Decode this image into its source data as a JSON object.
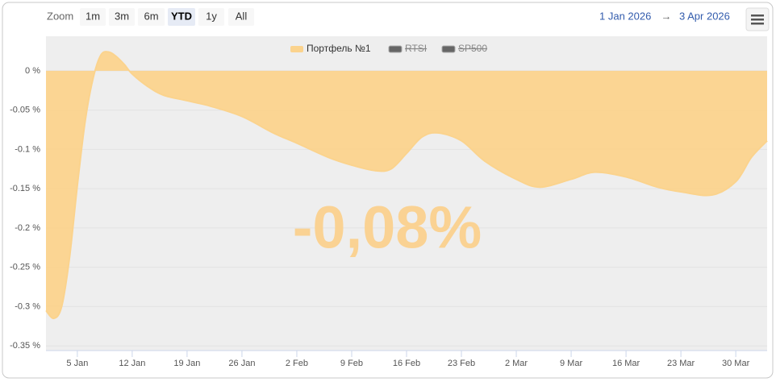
{
  "chart_data": {
    "type": "area",
    "range_selector": {
      "label": "Zoom",
      "buttons": [
        "1m",
        "3m",
        "6m",
        "YTD",
        "1y",
        "All"
      ],
      "selected": 3
    },
    "date_range": {
      "from": "1 Jan 2026",
      "arrow": "→",
      "to": "3 Apr 2026"
    },
    "annotation": "-0,08%",
    "x": [
      "2026-01-01",
      "2026-01-02",
      "2026-01-03",
      "2026-01-04",
      "2026-01-05",
      "2026-01-06",
      "2026-01-07",
      "2026-01-08",
      "2026-01-09",
      "2026-01-10",
      "2026-01-11",
      "2026-01-12",
      "2026-01-14",
      "2026-01-16",
      "2026-01-19",
      "2026-01-22",
      "2026-01-26",
      "2026-01-30",
      "2026-02-02",
      "2026-02-06",
      "2026-02-09",
      "2026-02-12",
      "2026-02-14",
      "2026-02-16",
      "2026-02-18",
      "2026-02-20",
      "2026-02-23",
      "2026-02-26",
      "2026-03-02",
      "2026-03-05",
      "2026-03-09",
      "2026-03-12",
      "2026-03-16",
      "2026-03-20",
      "2026-03-23",
      "2026-03-27",
      "2026-03-30",
      "2026-04-01",
      "2026-04-03"
    ],
    "series": [
      {
        "name": "Портфель №1",
        "color": "#fbd38d",
        "visible": true,
        "values": [
          -0.305,
          -0.315,
          -0.3,
          -0.238,
          -0.146,
          -0.064,
          -0.01,
          0.02,
          0.024,
          0.018,
          0.008,
          -0.004,
          -0.02,
          -0.031,
          -0.038,
          -0.045,
          -0.058,
          -0.079,
          -0.092,
          -0.11,
          -0.12,
          -0.127,
          -0.125,
          -0.105,
          -0.084,
          -0.079,
          -0.089,
          -0.115,
          -0.138,
          -0.148,
          -0.138,
          -0.129,
          -0.135,
          -0.148,
          -0.154,
          -0.158,
          -0.141,
          -0.11,
          -0.089
        ]
      },
      {
        "name": "RTSI",
        "color": "#666666",
        "visible": false
      },
      {
        "name": "SP500",
        "color": "#666666",
        "visible": false
      }
    ],
    "xlim": [
      "2026-01-01",
      "2026-04-03"
    ],
    "xticks": [
      {
        "value": "2026-01-05",
        "label": "5 Jan"
      },
      {
        "value": "2026-01-12",
        "label": "12 Jan"
      },
      {
        "value": "2026-01-19",
        "label": "19 Jan"
      },
      {
        "value": "2026-01-26",
        "label": "26 Jan"
      },
      {
        "value": "2026-02-02",
        "label": "2 Feb"
      },
      {
        "value": "2026-02-09",
        "label": "9 Feb"
      },
      {
        "value": "2026-02-16",
        "label": "16 Feb"
      },
      {
        "value": "2026-02-23",
        "label": "23 Feb"
      },
      {
        "value": "2026-03-02",
        "label": "2 Mar"
      },
      {
        "value": "2026-03-09",
        "label": "9 Mar"
      },
      {
        "value": "2026-03-16",
        "label": "16 Mar"
      },
      {
        "value": "2026-03-23",
        "label": "23 Mar"
      },
      {
        "value": "2026-03-30",
        "label": "30 Mar"
      }
    ],
    "ylim": [
      -0.356,
      0.044
    ],
    "yticks": [
      {
        "value": 0,
        "label": "0 %"
      },
      {
        "value": -0.05,
        "label": "-0.05 %"
      },
      {
        "value": -0.1,
        "label": "-0.1 %"
      },
      {
        "value": -0.15,
        "label": "-0.15 %"
      },
      {
        "value": -0.2,
        "label": "-0.2 %"
      },
      {
        "value": -0.25,
        "label": "-0.25 %"
      },
      {
        "value": -0.3,
        "label": "-0.3 %"
      },
      {
        "value": -0.35,
        "label": "-0.35 %"
      }
    ],
    "grid": true
  }
}
